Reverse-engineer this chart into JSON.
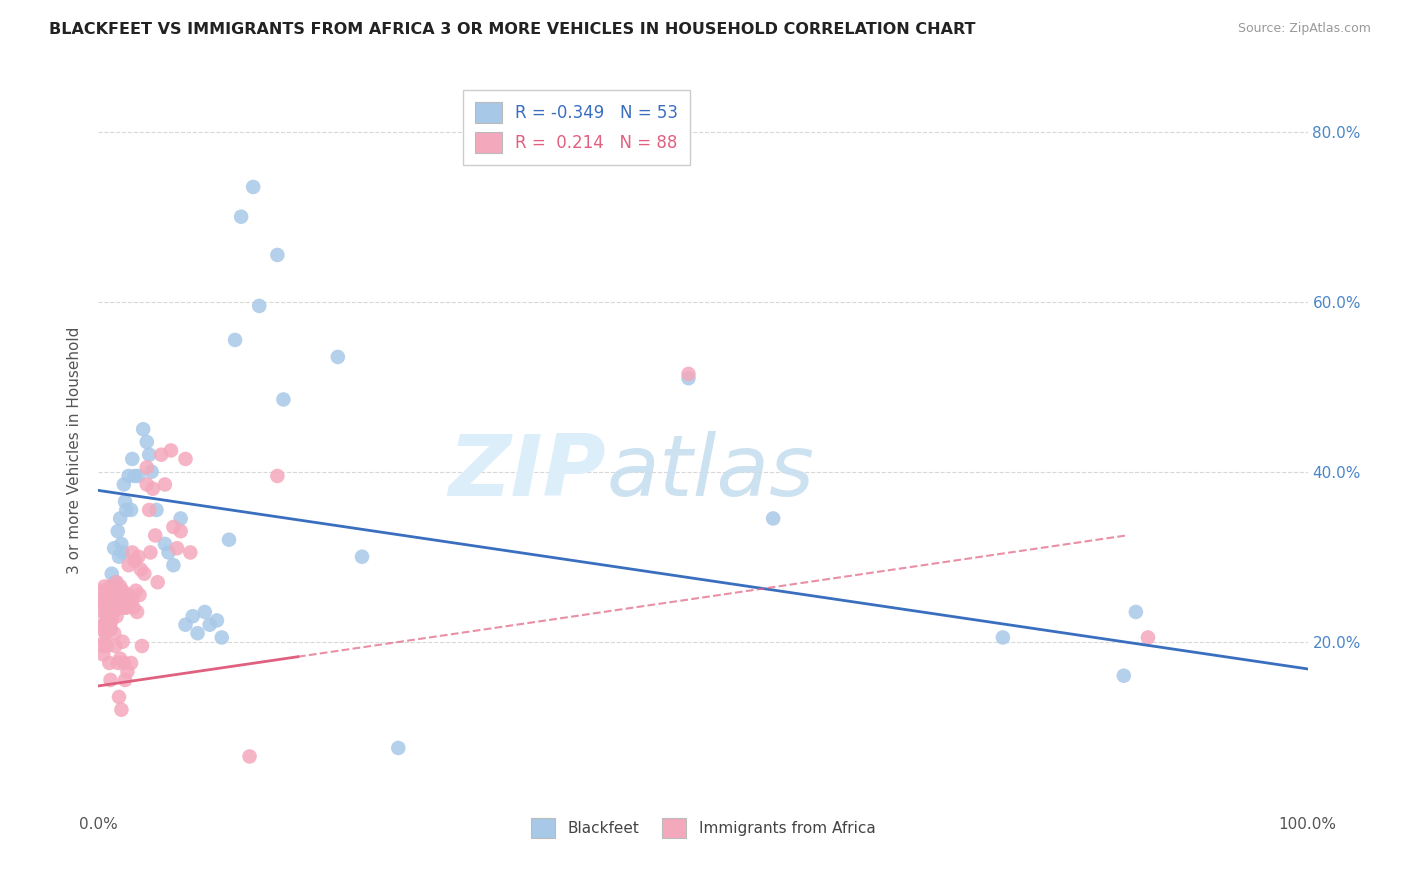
{
  "title": "BLACKFEET VS IMMIGRANTS FROM AFRICA 3 OR MORE VEHICLES IN HOUSEHOLD CORRELATION CHART",
  "source": "Source: ZipAtlas.com",
  "ylabel": "3 or more Vehicles in Household",
  "legend1_R": "-0.349",
  "legend1_N": "53",
  "legend2_R": "0.214",
  "legend2_N": "88",
  "blue_color": "#a8c8e8",
  "pink_color": "#f4a8bc",
  "blue_line_color": "#3a6fbf",
  "pink_line_color": "#e06080",
  "watermark_color": "#dceefa",
  "background_color": "#ffffff",
  "grid_color": "#d8d8d8",
  "blue_points": [
    [
      0.008,
      0.255
    ],
    [
      0.009,
      0.24
    ],
    [
      0.009,
      0.23
    ],
    [
      0.01,
      0.215
    ],
    [
      0.011,
      0.28
    ],
    [
      0.012,
      0.265
    ],
    [
      0.013,
      0.31
    ],
    [
      0.014,
      0.27
    ],
    [
      0.015,
      0.255
    ],
    [
      0.016,
      0.33
    ],
    [
      0.017,
      0.3
    ],
    [
      0.018,
      0.345
    ],
    [
      0.019,
      0.315
    ],
    [
      0.02,
      0.305
    ],
    [
      0.021,
      0.385
    ],
    [
      0.022,
      0.365
    ],
    [
      0.023,
      0.355
    ],
    [
      0.025,
      0.395
    ],
    [
      0.027,
      0.355
    ],
    [
      0.028,
      0.415
    ],
    [
      0.03,
      0.395
    ],
    [
      0.033,
      0.395
    ],
    [
      0.037,
      0.45
    ],
    [
      0.04,
      0.435
    ],
    [
      0.042,
      0.42
    ],
    [
      0.044,
      0.4
    ],
    [
      0.048,
      0.355
    ],
    [
      0.055,
      0.315
    ],
    [
      0.058,
      0.305
    ],
    [
      0.062,
      0.29
    ],
    [
      0.068,
      0.345
    ],
    [
      0.072,
      0.22
    ],
    [
      0.078,
      0.23
    ],
    [
      0.082,
      0.21
    ],
    [
      0.088,
      0.235
    ],
    [
      0.092,
      0.22
    ],
    [
      0.098,
      0.225
    ],
    [
      0.102,
      0.205
    ],
    [
      0.108,
      0.32
    ],
    [
      0.113,
      0.555
    ],
    [
      0.118,
      0.7
    ],
    [
      0.128,
      0.735
    ],
    [
      0.133,
      0.595
    ],
    [
      0.148,
      0.655
    ],
    [
      0.153,
      0.485
    ],
    [
      0.198,
      0.535
    ],
    [
      0.218,
      0.3
    ],
    [
      0.248,
      0.075
    ],
    [
      0.488,
      0.51
    ],
    [
      0.558,
      0.345
    ],
    [
      0.748,
      0.205
    ],
    [
      0.848,
      0.16
    ],
    [
      0.858,
      0.235
    ]
  ],
  "pink_points": [
    [
      0.002,
      0.25
    ],
    [
      0.002,
      0.215
    ],
    [
      0.003,
      0.235
    ],
    [
      0.003,
      0.195
    ],
    [
      0.004,
      0.26
    ],
    [
      0.004,
      0.22
    ],
    [
      0.004,
      0.185
    ],
    [
      0.005,
      0.265
    ],
    [
      0.005,
      0.245
    ],
    [
      0.005,
      0.22
    ],
    [
      0.005,
      0.2
    ],
    [
      0.006,
      0.255
    ],
    [
      0.006,
      0.235
    ],
    [
      0.006,
      0.21
    ],
    [
      0.007,
      0.25
    ],
    [
      0.007,
      0.225
    ],
    [
      0.007,
      0.195
    ],
    [
      0.008,
      0.26
    ],
    [
      0.008,
      0.24
    ],
    [
      0.008,
      0.215
    ],
    [
      0.009,
      0.25
    ],
    [
      0.009,
      0.225
    ],
    [
      0.009,
      0.175
    ],
    [
      0.01,
      0.265
    ],
    [
      0.01,
      0.245
    ],
    [
      0.01,
      0.215
    ],
    [
      0.01,
      0.155
    ],
    [
      0.011,
      0.245
    ],
    [
      0.011,
      0.225
    ],
    [
      0.012,
      0.26
    ],
    [
      0.012,
      0.235
    ],
    [
      0.013,
      0.24
    ],
    [
      0.013,
      0.21
    ],
    [
      0.014,
      0.245
    ],
    [
      0.014,
      0.195
    ],
    [
      0.015,
      0.27
    ],
    [
      0.015,
      0.255
    ],
    [
      0.015,
      0.23
    ],
    [
      0.016,
      0.24
    ],
    [
      0.016,
      0.175
    ],
    [
      0.017,
      0.255
    ],
    [
      0.017,
      0.135
    ],
    [
      0.018,
      0.265
    ],
    [
      0.018,
      0.18
    ],
    [
      0.019,
      0.25
    ],
    [
      0.019,
      0.12
    ],
    [
      0.02,
      0.26
    ],
    [
      0.02,
      0.2
    ],
    [
      0.021,
      0.24
    ],
    [
      0.021,
      0.175
    ],
    [
      0.022,
      0.255
    ],
    [
      0.022,
      0.155
    ],
    [
      0.023,
      0.24
    ],
    [
      0.024,
      0.165
    ],
    [
      0.025,
      0.29
    ],
    [
      0.025,
      0.255
    ],
    [
      0.026,
      0.245
    ],
    [
      0.027,
      0.175
    ],
    [
      0.028,
      0.305
    ],
    [
      0.028,
      0.25
    ],
    [
      0.029,
      0.24
    ],
    [
      0.03,
      0.295
    ],
    [
      0.031,
      0.26
    ],
    [
      0.032,
      0.235
    ],
    [
      0.033,
      0.3
    ],
    [
      0.034,
      0.255
    ],
    [
      0.035,
      0.285
    ],
    [
      0.036,
      0.195
    ],
    [
      0.038,
      0.28
    ],
    [
      0.04,
      0.405
    ],
    [
      0.04,
      0.385
    ],
    [
      0.042,
      0.355
    ],
    [
      0.043,
      0.305
    ],
    [
      0.045,
      0.38
    ],
    [
      0.047,
      0.325
    ],
    [
      0.049,
      0.27
    ],
    [
      0.052,
      0.42
    ],
    [
      0.055,
      0.385
    ],
    [
      0.06,
      0.425
    ],
    [
      0.062,
      0.335
    ],
    [
      0.065,
      0.31
    ],
    [
      0.068,
      0.33
    ],
    [
      0.072,
      0.415
    ],
    [
      0.076,
      0.305
    ],
    [
      0.125,
      0.065
    ],
    [
      0.148,
      0.395
    ],
    [
      0.488,
      0.515
    ],
    [
      0.868,
      0.205
    ]
  ],
  "blue_line": {
    "x0": 0.0,
    "y0": 0.378,
    "x1": 1.0,
    "y1": 0.168
  },
  "pink_line": {
    "x0": 0.0,
    "y0": 0.148,
    "x1": 0.85,
    "y1": 0.325
  },
  "pink_line_dashed_start": 0.165,
  "ylim": [
    0.0,
    0.85
  ],
  "xlim": [
    0.0,
    1.0
  ]
}
